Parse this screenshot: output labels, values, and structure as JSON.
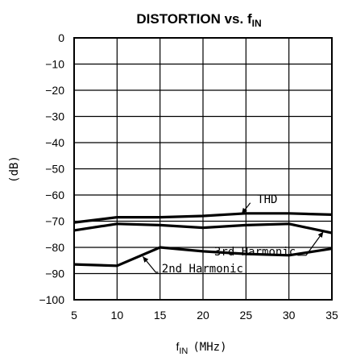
{
  "chart_data": {
    "type": "line",
    "title": "DISTORTION vs. f",
    "title_sub": "IN",
    "xlabel_main": "f",
    "xlabel_sub": "IN",
    "xlabel_unit": "(MHz)",
    "ylabel": "(dB)",
    "xlim": [
      5,
      35
    ],
    "ylim": [
      -100,
      0
    ],
    "xticks": [
      "5",
      "10",
      "15",
      "20",
      "25",
      "30",
      "35"
    ],
    "yticks": [
      "0",
      "-10",
      "-20",
      "-30",
      "-40",
      "-50",
      "-60",
      "-70",
      "-80",
      "-90",
      "-100"
    ],
    "grid": true,
    "series": [
      {
        "name": "THD",
        "x": [
          5,
          10,
          15,
          20,
          25,
          30,
          35
        ],
        "y": [
          -70.5,
          -68.5,
          -68.5,
          -68,
          -67,
          -67,
          -67.5
        ]
      },
      {
        "name": "3rd Harmonic",
        "x": [
          5,
          10,
          15,
          20,
          25,
          30,
          35
        ],
        "y": [
          -73.5,
          -71,
          -71.5,
          -72.5,
          -71.5,
          -71,
          -74.5
        ]
      },
      {
        "name": "2nd Harmonic",
        "x": [
          5,
          10,
          15,
          20,
          25,
          30,
          35
        ],
        "y": [
          -86.5,
          -87,
          -80,
          -81.5,
          -82.5,
          -83,
          -80.5
        ]
      }
    ],
    "annotations": [
      {
        "text": "THD"
      },
      {
        "text": "3rd Harmonic"
      },
      {
        "text": "2nd Harmonic"
      }
    ]
  }
}
